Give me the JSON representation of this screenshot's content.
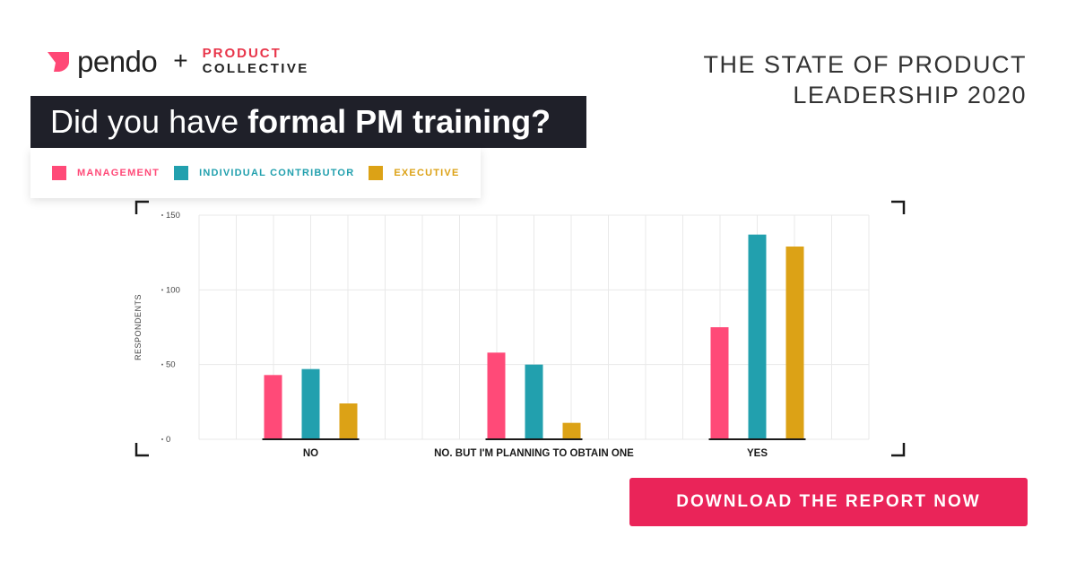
{
  "branding": {
    "pendo": "pendo",
    "plus": "+",
    "partner_top": "PRODUCT",
    "partner_bottom": "COLLECTIVE",
    "pendo_icon": "pendo-flag-icon",
    "pendo_color": "#ff4876"
  },
  "report_title": [
    "THE STATE OF PRODUCT",
    "LEADERSHIP 2020"
  ],
  "question": {
    "light": "Did you have ",
    "bold": "formal PM training?"
  },
  "legend": [
    {
      "label": "MANAGEMENT",
      "color": "#ff4a78"
    },
    {
      "label": "INDIVIDUAL CONTRIBUTOR",
      "color": "#22a0ae"
    },
    {
      "label": "EXECUTIVE",
      "color": "#dca216"
    }
  ],
  "chart_data": {
    "type": "bar",
    "categories": [
      "NO",
      "NO. BUT I'M PLANNING TO OBTAIN ONE",
      "YES"
    ],
    "series": [
      {
        "name": "MANAGEMENT",
        "values": [
          43,
          58,
          75
        ],
        "color": "#ff4a78"
      },
      {
        "name": "INDIVIDUAL CONTRIBUTOR",
        "values": [
          47,
          50,
          137
        ],
        "color": "#22a0ae"
      },
      {
        "name": "EXECUTIVE",
        "values": [
          24,
          11,
          129
        ],
        "color": "#dca216"
      }
    ],
    "ylabel": "RESPONDENTS",
    "ylim": [
      0,
      150
    ],
    "yticks": [
      0,
      50,
      100,
      150
    ],
    "grid": true
  },
  "cta": {
    "label": "DOWNLOAD THE REPORT NOW",
    "color": "#ea2459"
  }
}
